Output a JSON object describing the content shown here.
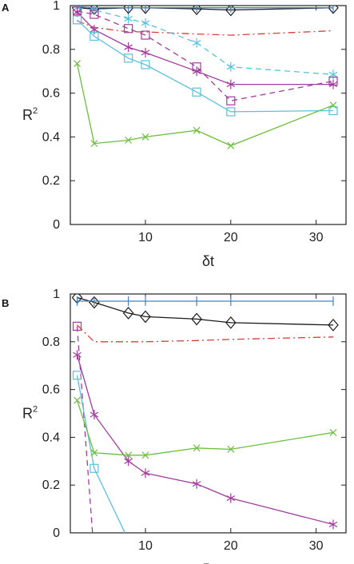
{
  "colors": {
    "black": "#1a1a1a",
    "blue": "#4a7fc1",
    "red": "#d7403a",
    "cyan": "#5bc0de",
    "magenta": "#a23c9e",
    "green": "#6cbf3a"
  },
  "chart_data": [
    {
      "panel": "A",
      "type": "line",
      "title": "",
      "xlabel": "δt",
      "ylabel": "R",
      "ylabel_superscript": "2",
      "xlim": [
        1.2,
        33.5
      ],
      "ylim": [
        0,
        1
      ],
      "x_ticks": [
        10,
        20,
        30
      ],
      "y_ticks": [
        0,
        0.2,
        0.4,
        0.6,
        0.8,
        1
      ],
      "y_tick_labels": [
        "0",
        "0.2",
        "0.4",
        "0.6",
        "0.8",
        "1"
      ],
      "grid": false,
      "legend": "none",
      "series": [
        {
          "color": "black",
          "line": "solid",
          "marker": "diamond",
          "x": [
            2,
            4,
            8,
            10,
            16,
            20,
            32
          ],
          "y": [
            0.99,
            0.985,
            0.99,
            0.99,
            0.985,
            0.98,
            0.99
          ]
        },
        {
          "color": "blue",
          "line": "solid",
          "marker": "plus",
          "x": [
            2,
            4,
            8,
            10,
            16,
            20,
            32
          ],
          "y": [
            0.995,
            0.99,
            0.99,
            0.99,
            0.99,
            0.99,
            0.99
          ]
        },
        {
          "color": "red",
          "line": "dashdot",
          "marker": "none",
          "x": [
            2,
            4,
            8,
            10,
            16,
            20,
            32
          ],
          "y": [
            0.93,
            0.9,
            0.88,
            0.88,
            0.87,
            0.865,
            0.885
          ]
        },
        {
          "color": "cyan",
          "line": "dashed",
          "marker": "asterisk",
          "x": [
            2,
            4,
            8,
            10,
            16,
            20,
            32
          ],
          "y": [
            0.99,
            0.98,
            0.94,
            0.92,
            0.83,
            0.72,
            0.685
          ]
        },
        {
          "color": "magenta",
          "line": "dashed",
          "marker": "square",
          "x": [
            2,
            4,
            8,
            10,
            16,
            20,
            32
          ],
          "y": [
            0.975,
            0.96,
            0.895,
            0.865,
            0.72,
            0.565,
            0.655
          ]
        },
        {
          "color": "magenta",
          "line": "solid",
          "marker": "asterisk",
          "x": [
            2,
            4,
            8,
            10,
            16,
            20,
            32
          ],
          "y": [
            0.97,
            0.89,
            0.81,
            0.785,
            0.7,
            0.64,
            0.64
          ]
        },
        {
          "color": "cyan",
          "line": "solid",
          "marker": "square",
          "x": [
            2,
            4,
            8,
            10,
            16,
            20,
            32
          ],
          "y": [
            0.935,
            0.86,
            0.76,
            0.73,
            0.605,
            0.515,
            0.52
          ]
        },
        {
          "color": "green",
          "line": "solid",
          "marker": "x",
          "x": [
            2,
            4,
            8,
            10,
            16,
            20,
            32
          ],
          "y": [
            0.735,
            0.37,
            0.385,
            0.4,
            0.43,
            0.36,
            0.545
          ]
        }
      ]
    },
    {
      "panel": "B",
      "type": "line",
      "title": "",
      "xlabel": "δt",
      "ylabel": "R",
      "ylabel_superscript": "2",
      "xlim": [
        1.2,
        33.5
      ],
      "ylim": [
        0,
        1
      ],
      "x_ticks": [
        10,
        20,
        30
      ],
      "y_ticks": [
        0,
        0.2,
        0.4,
        0.6,
        0.8,
        1
      ],
      "y_tick_labels": [
        "0",
        "0.2",
        "0.4",
        "0.6",
        "0.8",
        "1"
      ],
      "grid": false,
      "legend": "none",
      "series": [
        {
          "color": "black",
          "line": "solid",
          "marker": "diamond",
          "x": [
            2,
            4,
            8,
            10,
            16,
            20,
            32
          ],
          "y": [
            0.985,
            0.965,
            0.92,
            0.905,
            0.895,
            0.88,
            0.87
          ]
        },
        {
          "color": "blue",
          "line": "solid",
          "marker": "plus",
          "x": [
            2,
            4,
            8,
            10,
            16,
            20,
            32
          ],
          "y": [
            0.97,
            0.97,
            0.97,
            0.97,
            0.97,
            0.97,
            0.97
          ]
        },
        {
          "color": "red",
          "line": "dashdot",
          "marker": "none",
          "x": [
            2,
            4,
            8,
            10,
            16,
            20,
            32
          ],
          "y": [
            0.87,
            0.8,
            0.8,
            0.8,
            0.805,
            0.81,
            0.82
          ]
        },
        {
          "color": "magenta",
          "line": "dashed",
          "marker": "square",
          "x": [
            2,
            3.8
          ],
          "y": [
            0.865,
            0
          ]
        },
        {
          "color": "magenta",
          "line": "solid",
          "marker": "asterisk",
          "x": [
            2,
            4,
            8,
            10,
            16,
            20,
            32
          ],
          "y": [
            0.745,
            0.495,
            0.3,
            0.25,
            0.205,
            0.145,
            0.035
          ]
        },
        {
          "color": "cyan",
          "line": "solid",
          "marker": "square",
          "x": [
            2,
            4,
            7.6
          ],
          "y": [
            0.66,
            0.27,
            0
          ]
        },
        {
          "color": "green",
          "line": "solid",
          "marker": "x",
          "x": [
            2,
            4,
            8,
            10,
            16,
            20,
            32
          ],
          "y": [
            0.555,
            0.335,
            0.325,
            0.325,
            0.355,
            0.35,
            0.42
          ]
        }
      ]
    }
  ]
}
